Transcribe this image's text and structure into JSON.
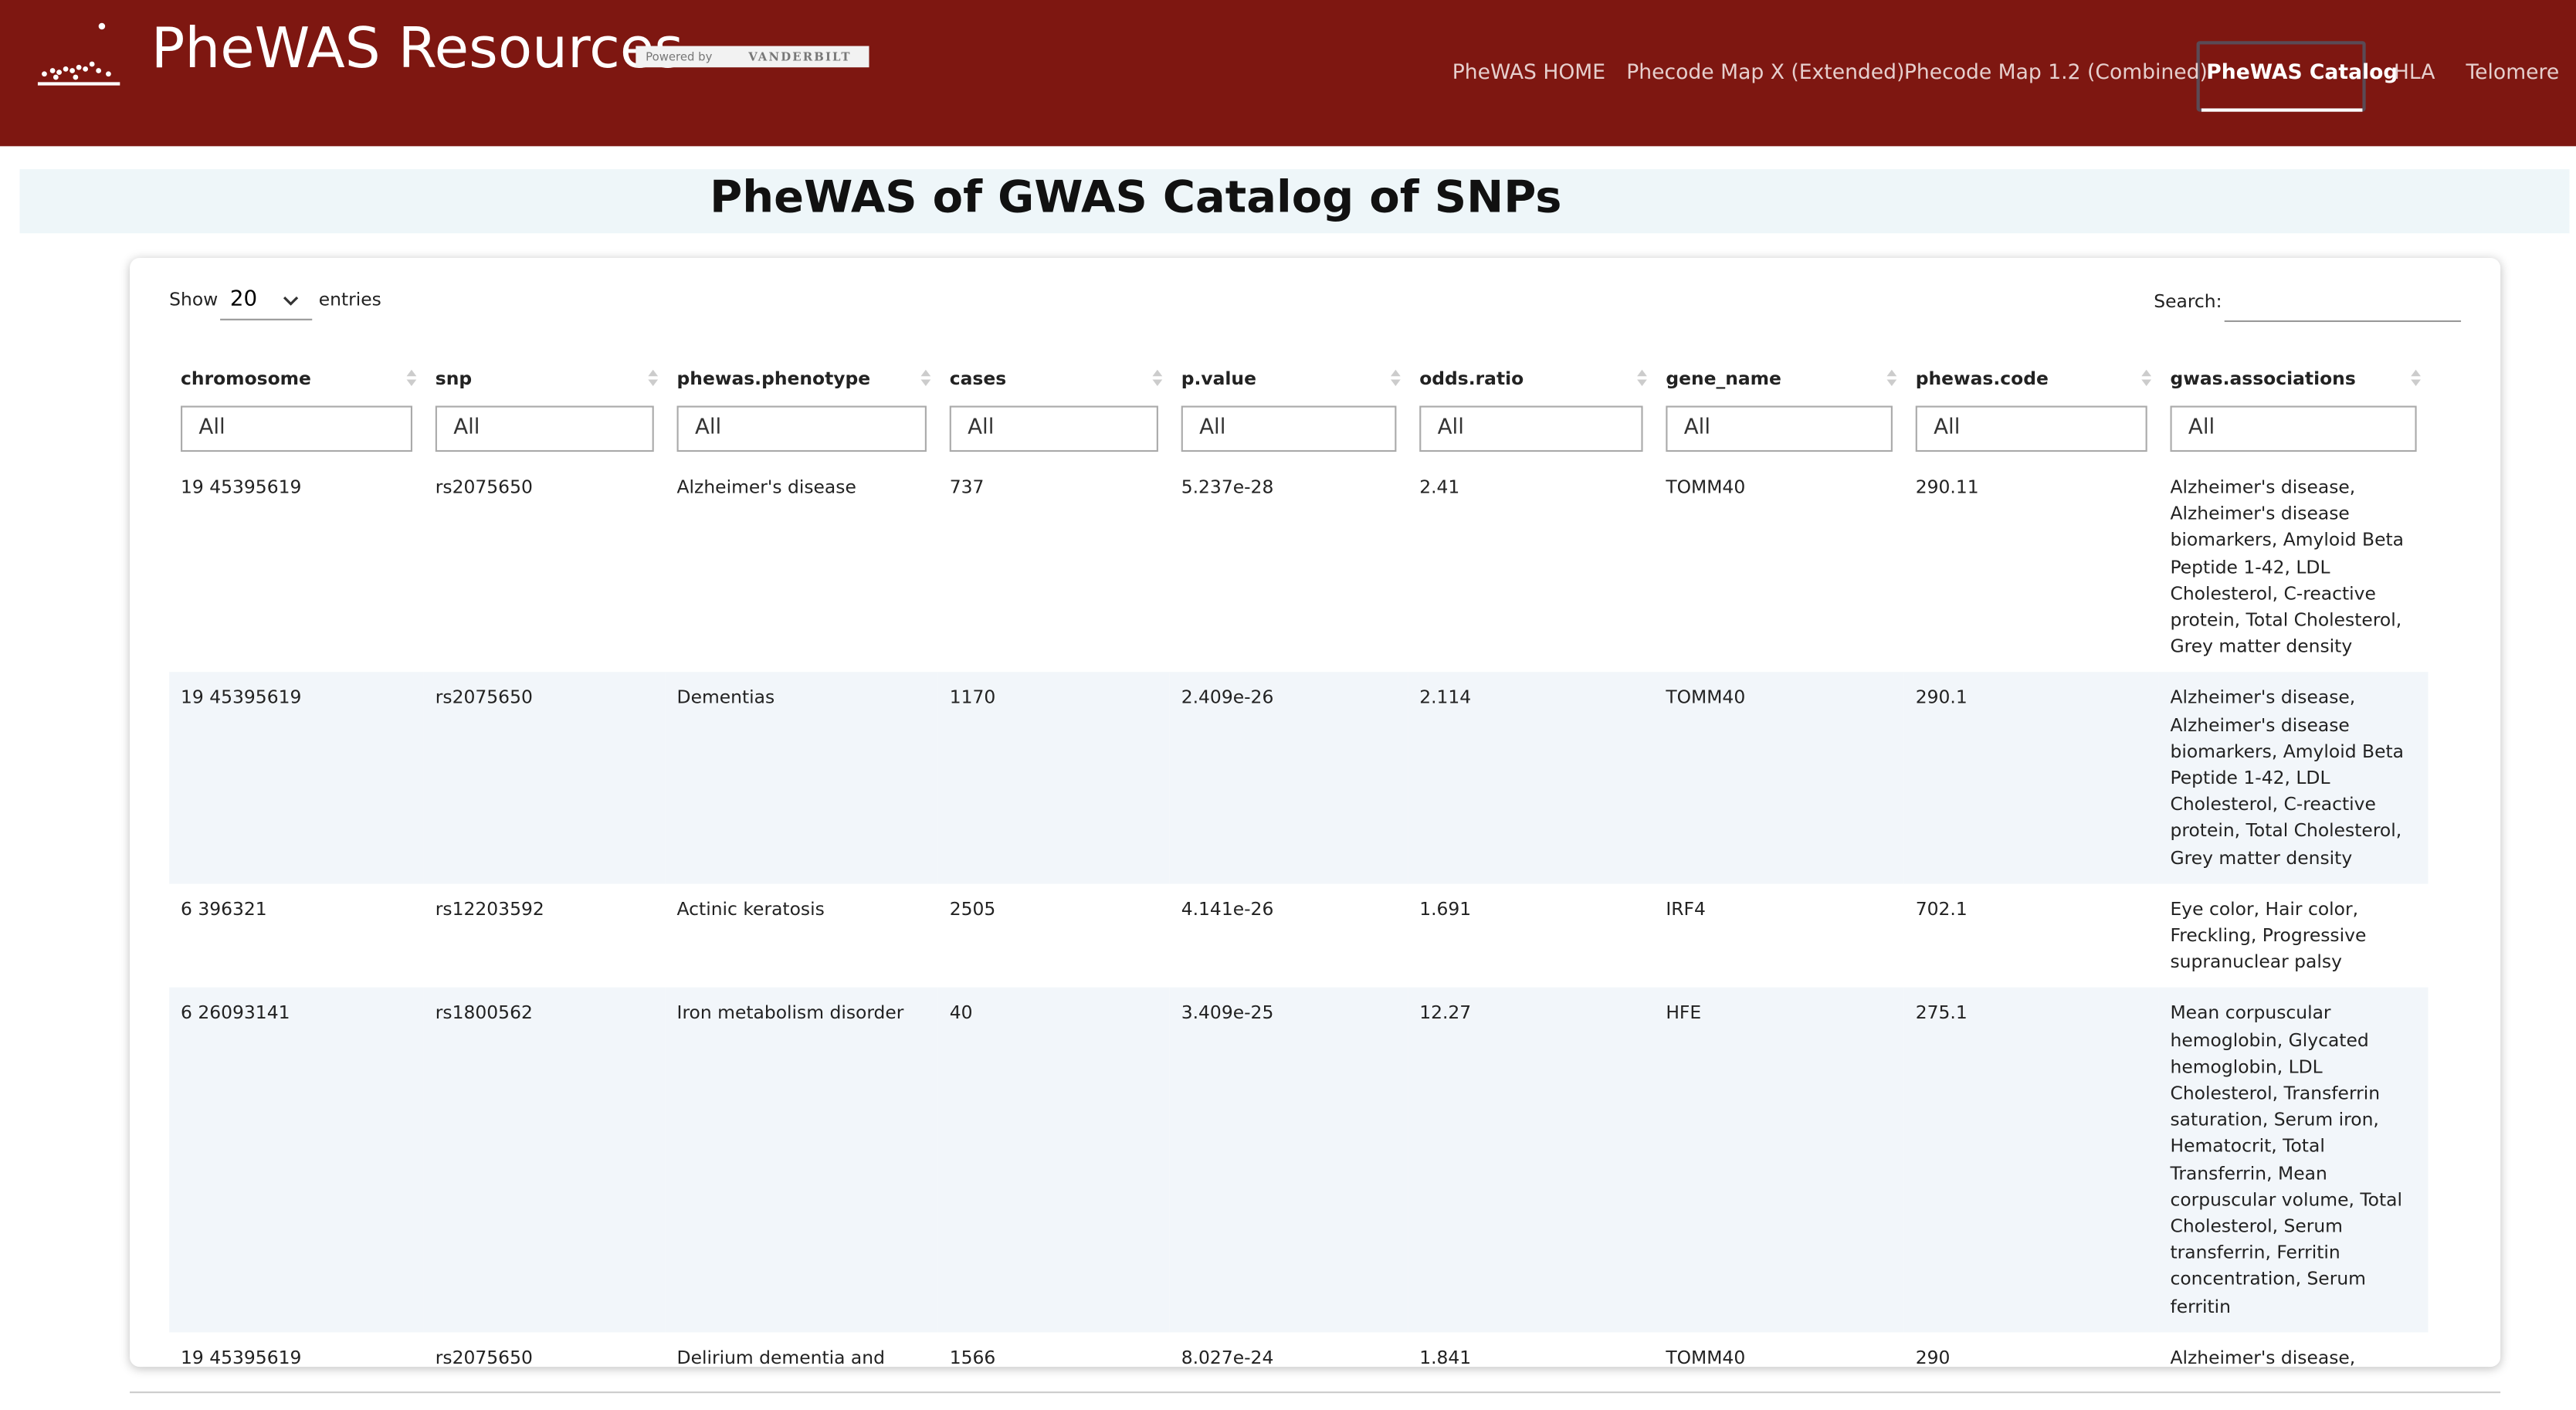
{
  "header": {
    "title": "PheWAS Resources",
    "powered_by": "Powered by",
    "brand": "VANDERBILT"
  },
  "nav": [
    "PheWAS HOME",
    "Phecode Map X (Extended)",
    "Phecode Map 1.2 (Combined)",
    "PheWAS Catalog",
    "HLA",
    "Telomere"
  ],
  "page_title": "PheWAS of GWAS Catalog of SNPs",
  "controls": {
    "show": "Show",
    "page_size": "20",
    "entries": "entries",
    "search": "Search:"
  },
  "table": {
    "columns": [
      "chromosome",
      "snp",
      "phewas.phenotype",
      "cases",
      "p.value",
      "odds.ratio",
      "gene_name",
      "phewas.code",
      "gwas.associations"
    ],
    "filters": [
      "All",
      "All",
      "All",
      "All",
      "All",
      "All",
      "All",
      "All",
      "All"
    ],
    "rows": [
      [
        "19 45395619",
        "rs2075650",
        "Alzheimer's disease",
        "737",
        "5.237e-28",
        "2.41",
        "TOMM40",
        "290.11",
        "Alzheimer's disease, Alzheimer's disease biomarkers, Amyloid Beta Peptide 1-42, LDL Cholesterol, C-reactive protein, Total Cholesterol, Grey matter density"
      ],
      [
        "19 45395619",
        "rs2075650",
        "Dementias",
        "1170",
        "2.409e-26",
        "2.114",
        "TOMM40",
        "290.1",
        "Alzheimer's disease, Alzheimer's disease biomarkers, Amyloid Beta Peptide 1-42, LDL Cholesterol, C-reactive protein, Total Cholesterol, Grey matter density"
      ],
      [
        "6 396321",
        "rs12203592",
        "Actinic keratosis",
        "2505",
        "4.141e-26",
        "1.691",
        "IRF4",
        "702.1",
        "Eye color, Hair color, Freckling, Progressive supranuclear palsy"
      ],
      [
        "6 26093141",
        "rs1800562",
        "Iron metabolism disorder",
        "40",
        "3.409e-25",
        "12.27",
        "HFE",
        "275.1",
        "Mean corpuscular hemoglobin, Glycated hemoglobin, LDL Cholesterol, Transferrin saturation, Serum iron, Hematocrit, Total Transferrin, Mean corpuscular volume, Total Cholesterol, Serum transferrin, Ferritin concentration, Serum ferritin"
      ],
      [
        "19 45395619",
        "rs2075650",
        "Delirium dementia and amnestic disorders",
        "1566",
        "8.027e-24",
        "1.841",
        "TOMM40",
        "290",
        "Alzheimer's disease, Alzheimer's disease biomarkers, Amyloid Beta"
      ]
    ]
  }
}
